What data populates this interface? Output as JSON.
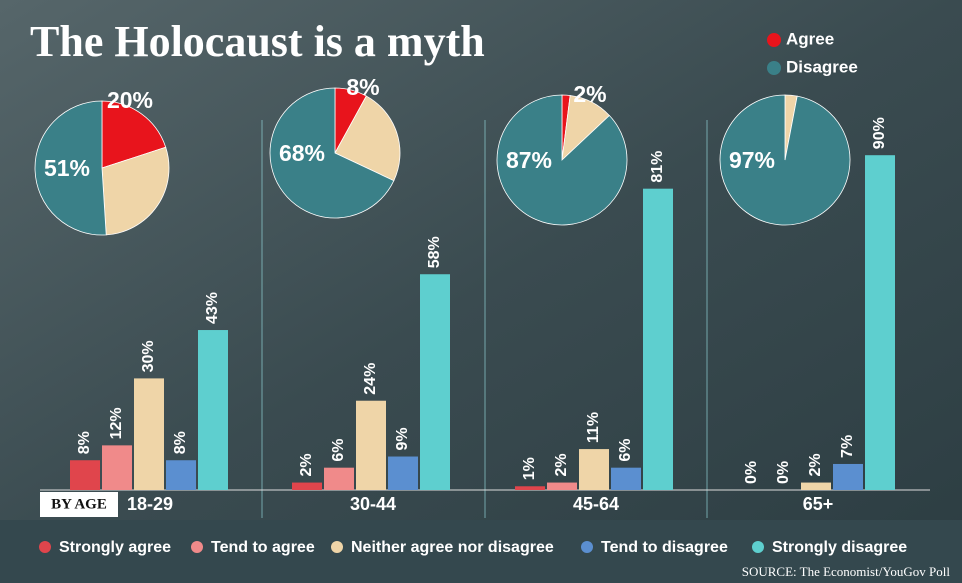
{
  "chart_data": [
    {
      "type": "pie",
      "title": "The Holocaust is a myth",
      "series": [
        {
          "name": "Agree",
          "color": "#e8141c",
          "values": [
            20,
            8,
            2,
            0
          ],
          "value_labels": [
            "20%",
            "8%",
            "2%",
            null
          ]
        },
        {
          "color": "#efd5a8",
          "values": [
            29,
            24,
            11,
            3
          ]
        },
        {
          "name": "Disagree",
          "color": "#3a8088",
          "values": [
            51,
            68,
            87,
            97
          ],
          "value_labels": [
            "51%",
            "68%",
            "87%",
            "97%"
          ]
        }
      ]
    },
    {
      "type": "bar",
      "x_label": "BY AGE",
      "categories": [
        "18-29",
        "30-44",
        "45-64",
        "65+"
      ],
      "source": "SOURCE: The Economist/YouGov Poll",
      "series": [
        {
          "name": "Strongly agree",
          "color": "#e0454c",
          "values": [
            8,
            2,
            1,
            0
          ],
          "value_labels": [
            "8%",
            "2%",
            "1%",
            "0%"
          ]
        },
        {
          "name": "Tend to agree",
          "color": "#f08a8a",
          "values": [
            12,
            6,
            2,
            0
          ],
          "value_labels": [
            "12%",
            "6%",
            "2%",
            "0%"
          ]
        },
        {
          "name": "Neither agree nor disagree",
          "color": "#efd5a8",
          "values": [
            30,
            24,
            11,
            2
          ],
          "value_labels": [
            "30%",
            "24%",
            "11%",
            "2%"
          ]
        },
        {
          "name": "Tend to disagree",
          "color": "#5b8fd0",
          "values": [
            8,
            9,
            6,
            7
          ],
          "value_labels": [
            "8%",
            "9%",
            "6%",
            "7%"
          ]
        },
        {
          "name": "Strongly disagree",
          "color": "#5ecfcf",
          "values": [
            43,
            58,
            81,
            90
          ],
          "value_labels": [
            "43%",
            "58%",
            "81%",
            "90%"
          ]
        }
      ]
    }
  ]
}
